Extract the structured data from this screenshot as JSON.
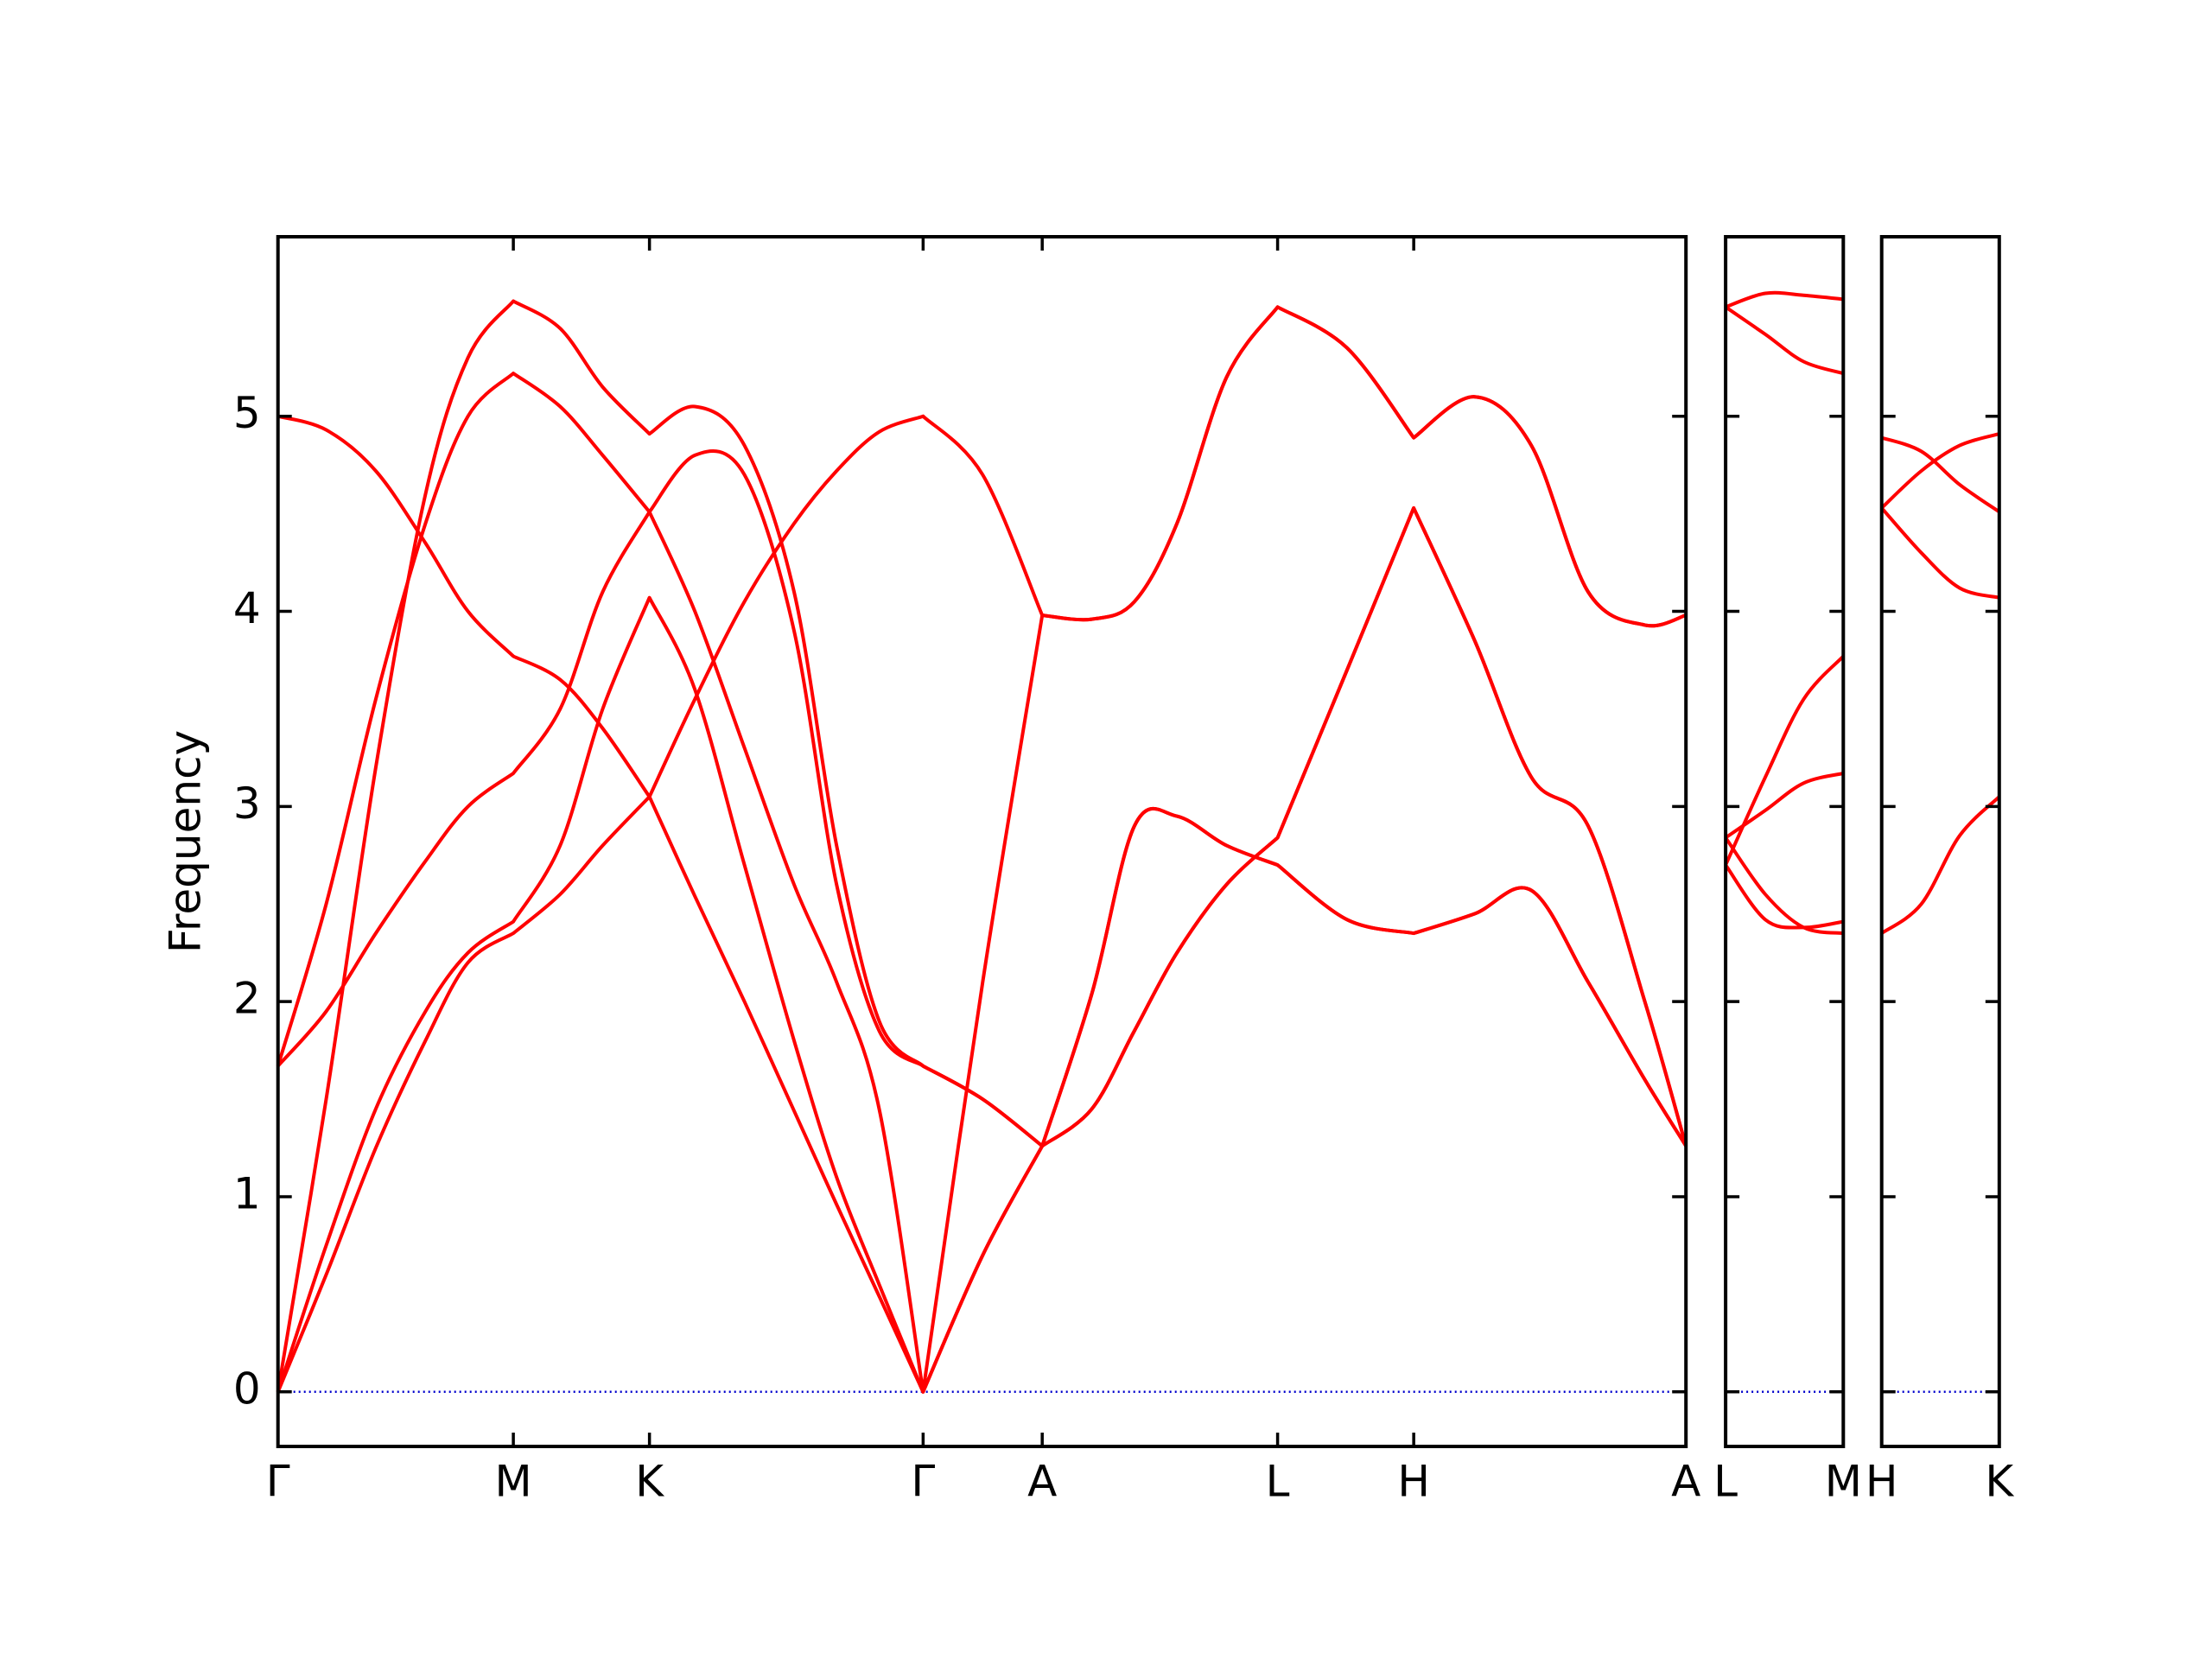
{
  "chart_data": [
    {
      "type": "line",
      "ylabel": "Frequency",
      "x": [
        0,
        0.34,
        0.69,
        1.04,
        1.34,
        1.66,
        1.99,
        2.29,
        2.62,
        2.94,
        3.29,
        3.64,
        3.94,
        4.24,
        4.55,
        4.97,
        5.39,
        5.74,
        6.04,
        6.34,
        6.69,
        7.05,
        7.54,
        8.01,
        8.44,
        8.84,
        9.24,
        9.64,
        9.93
      ],
      "xlim": [
        0,
        9.93
      ],
      "xticks": [
        {
          "value": 0,
          "label": "Γ"
        },
        {
          "value": 1.66,
          "label": "M"
        },
        {
          "value": 2.62,
          "label": "K"
        },
        {
          "value": 4.55,
          "label": "Γ"
        },
        {
          "value": 5.39,
          "label": "A"
        },
        {
          "value": 7.05,
          "label": "L"
        },
        {
          "value": 8.01,
          "label": "H"
        },
        {
          "value": 9.93,
          "label": "A"
        }
      ],
      "ylim": [
        -0.28,
        5.92
      ],
      "yticks": [
        0,
        1,
        2,
        3,
        4,
        5
      ],
      "zero_line_color": "#0000cc",
      "series": [
        {
          "color": "#ff0000",
          "values": [
            5.0,
            4.93,
            4.72,
            4.35,
            4.0,
            3.77,
            3.65,
            3.4,
            3.05,
            2.54,
            2.0,
            1.44,
            0.96,
            0.49,
            0,
            0.7,
            1.26,
            1.45,
            1.85,
            2.25,
            2.6,
            2.84,
            3.7,
            4.53,
            3.85,
            3.15,
            2.9,
            2.0,
            1.26
          ]
        },
        {
          "color": "#ff0000",
          "values": [
            1.67,
            1.95,
            2.35,
            2.72,
            3.0,
            3.17,
            3.5,
            4.1,
            4.51,
            4.8,
            4.7,
            3.9,
            2.6,
            1.85,
            1.67,
            1.5,
            1.26,
            2.04,
            2.9,
            2.95,
            2.8,
            2.7,
            2.42,
            2.35,
            2.45,
            2.57,
            2.1,
            1.6,
            1.26
          ]
        },
        {
          "color": "#ff0000",
          "values": [
            1.67,
            2.5,
            3.55,
            4.45,
            5.0,
            5.22,
            5.05,
            4.8,
            4.51,
            4.0,
            3.3,
            2.6,
            2.1,
            1.45,
            0,
            2.1,
            3.98,
            3.96,
            4.05,
            4.45,
            5.2,
            5.56,
            5.35,
            4.89,
            5.1,
            4.85,
            4.1,
            3.93,
            3.98
          ]
        },
        {
          "color": "#ff0000",
          "values": [
            0,
            1.5,
            3.2,
            4.6,
            5.3,
            5.59,
            5.45,
            5.15,
            4.91,
            5.05,
            4.85,
            4.1,
            2.8,
            1.9,
            1.67,
            1.5,
            1.26,
            2.04,
            2.9,
            2.95,
            2.8,
            2.7,
            2.42,
            2.35,
            2.45,
            2.57,
            2.1,
            1.6,
            1.26
          ]
        },
        {
          "color": "#ff0000",
          "values": [
            0,
            0.75,
            1.45,
            1.95,
            2.25,
            2.41,
            2.8,
            3.5,
            4.07,
            3.6,
            2.7,
            1.8,
            1.1,
            0.55,
            0,
            0.7,
            1.26,
            1.45,
            1.85,
            2.25,
            2.6,
            2.84,
            3.7,
            4.53,
            3.85,
            3.15,
            2.9,
            2.0,
            1.26
          ]
        },
        {
          "color": "#ff0000",
          "values": [
            0,
            0.6,
            1.25,
            1.8,
            2.2,
            2.35,
            2.55,
            2.8,
            3.05,
            3.55,
            4.05,
            4.45,
            4.72,
            4.92,
            5.0,
            4.7,
            3.98,
            3.96,
            4.05,
            4.45,
            5.2,
            5.56,
            5.35,
            4.89,
            5.1,
            4.85,
            4.1,
            3.93,
            3.98
          ]
        }
      ]
    },
    {
      "type": "line",
      "x": [
        0,
        0.28,
        0.55,
        0.83
      ],
      "xlim": [
        0,
        0.83
      ],
      "xticks": [
        {
          "value": 0,
          "label": "L"
        },
        {
          "value": 0.83,
          "label": "M"
        }
      ],
      "zero_line_color": "#0000cc",
      "series": [
        {
          "color": "#ff0000",
          "values": [
            5.56,
            5.63,
            5.62,
            5.6
          ]
        },
        {
          "color": "#ff0000",
          "values": [
            5.56,
            5.42,
            5.28,
            5.22
          ]
        },
        {
          "color": "#ff0000",
          "values": [
            2.7,
            3.15,
            3.55,
            3.77
          ]
        },
        {
          "color": "#ff0000",
          "values": [
            2.84,
            2.98,
            3.12,
            3.17
          ]
        },
        {
          "color": "#ff0000",
          "values": [
            2.84,
            2.55,
            2.38,
            2.35
          ]
        },
        {
          "color": "#ff0000",
          "values": [
            2.7,
            2.42,
            2.38,
            2.41
          ]
        }
      ]
    },
    {
      "type": "line",
      "x": [
        0,
        0.28,
        0.55,
        0.83
      ],
      "xlim": [
        0,
        0.83
      ],
      "xticks": [
        {
          "value": 0,
          "label": "H"
        },
        {
          "value": 0.83,
          "label": "K"
        }
      ],
      "zero_line_color": "#0000cc",
      "series": [
        {
          "color": "#ff0000",
          "values": [
            4.89,
            4.82,
            4.65,
            4.51
          ]
        },
        {
          "color": "#ff0000",
          "values": [
            4.53,
            4.72,
            4.85,
            4.91
          ]
        },
        {
          "color": "#ff0000",
          "values": [
            4.53,
            4.3,
            4.12,
            4.07
          ]
        },
        {
          "color": "#ff0000",
          "values": [
            2.35,
            2.5,
            2.85,
            3.05
          ]
        }
      ]
    }
  ]
}
